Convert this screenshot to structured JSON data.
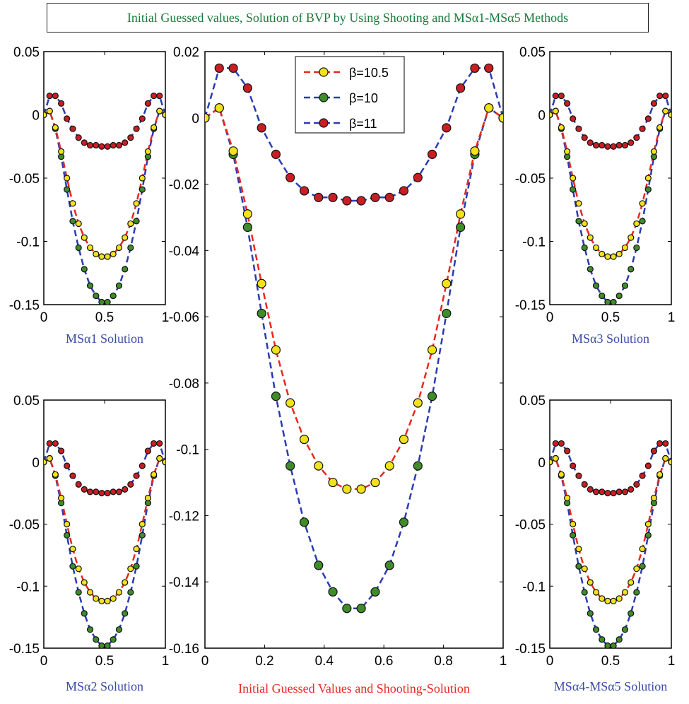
{
  "title": "Initial Guessed values, Solution of BVP by Using Shooting and MSα1-MSα5 Methods",
  "colors": {
    "title": "#1a7a3a",
    "beta105_line": "#e8281e",
    "beta105_marker": "#f2e21c",
    "beta10_line": "#2b3bb3",
    "beta10_marker": "#3f8c2a",
    "beta11_line": "#2b3bb3",
    "beta11_marker": "#c81e24",
    "small_label": "#3a4aa8",
    "main_label": "#e8281e"
  },
  "chart_data": [
    {
      "id": "main",
      "type": "line",
      "xlabel": "Initial Guessed Values and Shooting-Solution",
      "ylabel": "",
      "xlim": [
        0,
        1
      ],
      "ylim": [
        -0.16,
        0.02
      ],
      "xticks": [
        "0",
        "0.2",
        "0.4",
        "0.6",
        "0.8",
        "1"
      ],
      "yticks": [
        "0.02",
        "0",
        "-0.02",
        "-0.04",
        "-0.06",
        "-0.08",
        "-0.1",
        "-0.12",
        "-0.14",
        "-0.16"
      ],
      "legend": {
        "placement": "top-center",
        "entries": [
          "β=10.5",
          "β=10",
          "β=11"
        ]
      },
      "grid": false,
      "x": [
        0,
        0.048,
        0.095,
        0.143,
        0.19,
        0.238,
        0.286,
        0.333,
        0.381,
        0.429,
        0.476,
        0.524,
        0.571,
        0.619,
        0.667,
        0.714,
        0.762,
        0.81,
        0.857,
        0.905,
        0.952,
        1
      ],
      "series": [
        {
          "name": "β=10.5",
          "values": [
            0,
            0.003,
            -0.01,
            -0.029,
            -0.05,
            -0.07,
            -0.086,
            -0.097,
            -0.105,
            -0.11,
            -0.112,
            -0.112,
            -0.11,
            -0.105,
            -0.097,
            -0.086,
            -0.07,
            -0.05,
            -0.029,
            -0.01,
            0.003,
            0
          ]
        },
        {
          "name": "β=10",
          "values": [
            0,
            0.003,
            -0.011,
            -0.033,
            -0.059,
            -0.084,
            -0.105,
            -0.122,
            -0.135,
            -0.143,
            -0.148,
            -0.148,
            -0.143,
            -0.135,
            -0.122,
            -0.105,
            -0.084,
            -0.059,
            -0.033,
            -0.011,
            0.003,
            0
          ]
        },
        {
          "name": "β=11",
          "values": [
            0,
            0.015,
            0.015,
            0.009,
            -0.003,
            -0.011,
            -0.018,
            -0.022,
            -0.024,
            -0.024,
            -0.025,
            -0.025,
            -0.024,
            -0.024,
            -0.022,
            -0.018,
            -0.011,
            -0.003,
            0.009,
            0.015,
            0.015,
            0
          ]
        }
      ]
    },
    {
      "id": "ms1",
      "type": "line",
      "xlabel": "MSα1 Solution",
      "xlim": [
        0,
        1
      ],
      "ylim": [
        -0.15,
        0.05
      ],
      "xticks": [
        "0",
        "0.5",
        "1"
      ],
      "yticks": [
        "0.05",
        "0",
        "-0.05",
        "-0.1",
        "-0.15"
      ],
      "grid": false,
      "x": [
        0,
        0.048,
        0.095,
        0.143,
        0.19,
        0.238,
        0.286,
        0.333,
        0.381,
        0.429,
        0.476,
        0.524,
        0.571,
        0.619,
        0.667,
        0.714,
        0.762,
        0.81,
        0.857,
        0.905,
        0.952,
        1
      ],
      "series": [
        {
          "name": "β=10.5",
          "values": [
            0,
            0.003,
            -0.01,
            -0.029,
            -0.05,
            -0.07,
            -0.086,
            -0.097,
            -0.105,
            -0.11,
            -0.112,
            -0.112,
            -0.11,
            -0.105,
            -0.097,
            -0.086,
            -0.07,
            -0.05,
            -0.029,
            -0.01,
            0.003,
            0
          ]
        },
        {
          "name": "β=10",
          "values": [
            0,
            0.003,
            -0.011,
            -0.033,
            -0.059,
            -0.084,
            -0.105,
            -0.122,
            -0.135,
            -0.143,
            -0.148,
            -0.148,
            -0.143,
            -0.135,
            -0.122,
            -0.105,
            -0.084,
            -0.059,
            -0.033,
            -0.011,
            0.003,
            0
          ]
        },
        {
          "name": "β=11",
          "values": [
            0,
            0.015,
            0.015,
            0.009,
            -0.003,
            -0.011,
            -0.018,
            -0.022,
            -0.024,
            -0.024,
            -0.025,
            -0.025,
            -0.024,
            -0.024,
            -0.022,
            -0.018,
            -0.011,
            -0.003,
            0.009,
            0.015,
            0.015,
            0
          ]
        }
      ]
    },
    {
      "id": "ms3",
      "type": "line",
      "xlabel": "MSα3 Solution",
      "xlim": [
        0,
        1
      ],
      "ylim": [
        -0.15,
        0.05
      ],
      "xticks": [
        "0",
        "0.5",
        "1"
      ],
      "yticks": [
        "0.05",
        "0",
        "-0.05",
        "-0.1",
        "-0.15"
      ],
      "grid": false,
      "x": [
        0,
        0.048,
        0.095,
        0.143,
        0.19,
        0.238,
        0.286,
        0.333,
        0.381,
        0.429,
        0.476,
        0.524,
        0.571,
        0.619,
        0.667,
        0.714,
        0.762,
        0.81,
        0.857,
        0.905,
        0.952,
        1
      ],
      "series": [
        {
          "name": "β=10.5",
          "values": [
            0,
            0.003,
            -0.01,
            -0.029,
            -0.05,
            -0.07,
            -0.086,
            -0.097,
            -0.105,
            -0.11,
            -0.112,
            -0.112,
            -0.11,
            -0.105,
            -0.097,
            -0.086,
            -0.07,
            -0.05,
            -0.029,
            -0.01,
            0.003,
            0
          ]
        },
        {
          "name": "β=10",
          "values": [
            0,
            0.003,
            -0.011,
            -0.033,
            -0.059,
            -0.084,
            -0.105,
            -0.122,
            -0.135,
            -0.143,
            -0.148,
            -0.148,
            -0.143,
            -0.135,
            -0.122,
            -0.105,
            -0.084,
            -0.059,
            -0.033,
            -0.011,
            0.003,
            0
          ]
        },
        {
          "name": "β=11",
          "values": [
            0,
            0.015,
            0.015,
            0.009,
            -0.003,
            -0.011,
            -0.018,
            -0.022,
            -0.024,
            -0.024,
            -0.025,
            -0.025,
            -0.024,
            -0.024,
            -0.022,
            -0.018,
            -0.011,
            -0.003,
            0.009,
            0.015,
            0.015,
            0
          ]
        }
      ]
    },
    {
      "id": "ms2",
      "type": "line",
      "xlabel": "MSα2 Solution",
      "xlim": [
        0,
        1
      ],
      "ylim": [
        -0.15,
        0.05
      ],
      "xticks": [
        "0",
        "0.5",
        "1"
      ],
      "yticks": [
        "0.05",
        "0",
        "-0.05",
        "-0.1",
        "-0.15"
      ],
      "grid": false,
      "x": [
        0,
        0.048,
        0.095,
        0.143,
        0.19,
        0.238,
        0.286,
        0.333,
        0.381,
        0.429,
        0.476,
        0.524,
        0.571,
        0.619,
        0.667,
        0.714,
        0.762,
        0.81,
        0.857,
        0.905,
        0.952,
        1
      ],
      "series": [
        {
          "name": "β=10.5",
          "values": [
            0,
            0.003,
            -0.01,
            -0.029,
            -0.05,
            -0.07,
            -0.086,
            -0.097,
            -0.105,
            -0.11,
            -0.112,
            -0.112,
            -0.11,
            -0.105,
            -0.097,
            -0.086,
            -0.07,
            -0.05,
            -0.029,
            -0.01,
            0.003,
            0
          ]
        },
        {
          "name": "β=10",
          "values": [
            0,
            0.003,
            -0.011,
            -0.033,
            -0.059,
            -0.084,
            -0.105,
            -0.122,
            -0.135,
            -0.143,
            -0.148,
            -0.148,
            -0.143,
            -0.135,
            -0.122,
            -0.105,
            -0.084,
            -0.059,
            -0.033,
            -0.011,
            0.003,
            0
          ]
        },
        {
          "name": "β=11",
          "values": [
            0,
            0.015,
            0.015,
            0.009,
            -0.003,
            -0.011,
            -0.018,
            -0.022,
            -0.024,
            -0.024,
            -0.025,
            -0.025,
            -0.024,
            -0.024,
            -0.022,
            -0.018,
            -0.011,
            -0.003,
            0.009,
            0.015,
            0.015,
            0
          ]
        }
      ]
    },
    {
      "id": "ms45",
      "type": "line",
      "xlabel": "MSα4-MSα5 Solution",
      "xlim": [
        0,
        1
      ],
      "ylim": [
        -0.15,
        0.05
      ],
      "xticks": [
        "0",
        "0.5",
        "1"
      ],
      "yticks": [
        "0.05",
        "0",
        "-0.05",
        "-0.1",
        "-0.15"
      ],
      "grid": false,
      "x": [
        0,
        0.048,
        0.095,
        0.143,
        0.19,
        0.238,
        0.286,
        0.333,
        0.381,
        0.429,
        0.476,
        0.524,
        0.571,
        0.619,
        0.667,
        0.714,
        0.762,
        0.81,
        0.857,
        0.905,
        0.952,
        1
      ],
      "series": [
        {
          "name": "β=10.5",
          "values": [
            0,
            0.003,
            -0.01,
            -0.029,
            -0.05,
            -0.07,
            -0.086,
            -0.097,
            -0.105,
            -0.11,
            -0.112,
            -0.112,
            -0.11,
            -0.105,
            -0.097,
            -0.086,
            -0.07,
            -0.05,
            -0.029,
            -0.01,
            0.003,
            0
          ]
        },
        {
          "name": "β=10",
          "values": [
            0,
            0.003,
            -0.011,
            -0.033,
            -0.059,
            -0.084,
            -0.105,
            -0.122,
            -0.135,
            -0.143,
            -0.148,
            -0.148,
            -0.143,
            -0.135,
            -0.122,
            -0.105,
            -0.084,
            -0.059,
            -0.033,
            -0.011,
            0.003,
            0
          ]
        },
        {
          "name": "β=11",
          "values": [
            0,
            0.015,
            0.015,
            0.009,
            -0.003,
            -0.011,
            -0.018,
            -0.022,
            -0.024,
            -0.024,
            -0.025,
            -0.025,
            -0.024,
            -0.024,
            -0.022,
            -0.018,
            -0.011,
            -0.003,
            0.009,
            0.015,
            0.015,
            0
          ]
        }
      ]
    }
  ]
}
